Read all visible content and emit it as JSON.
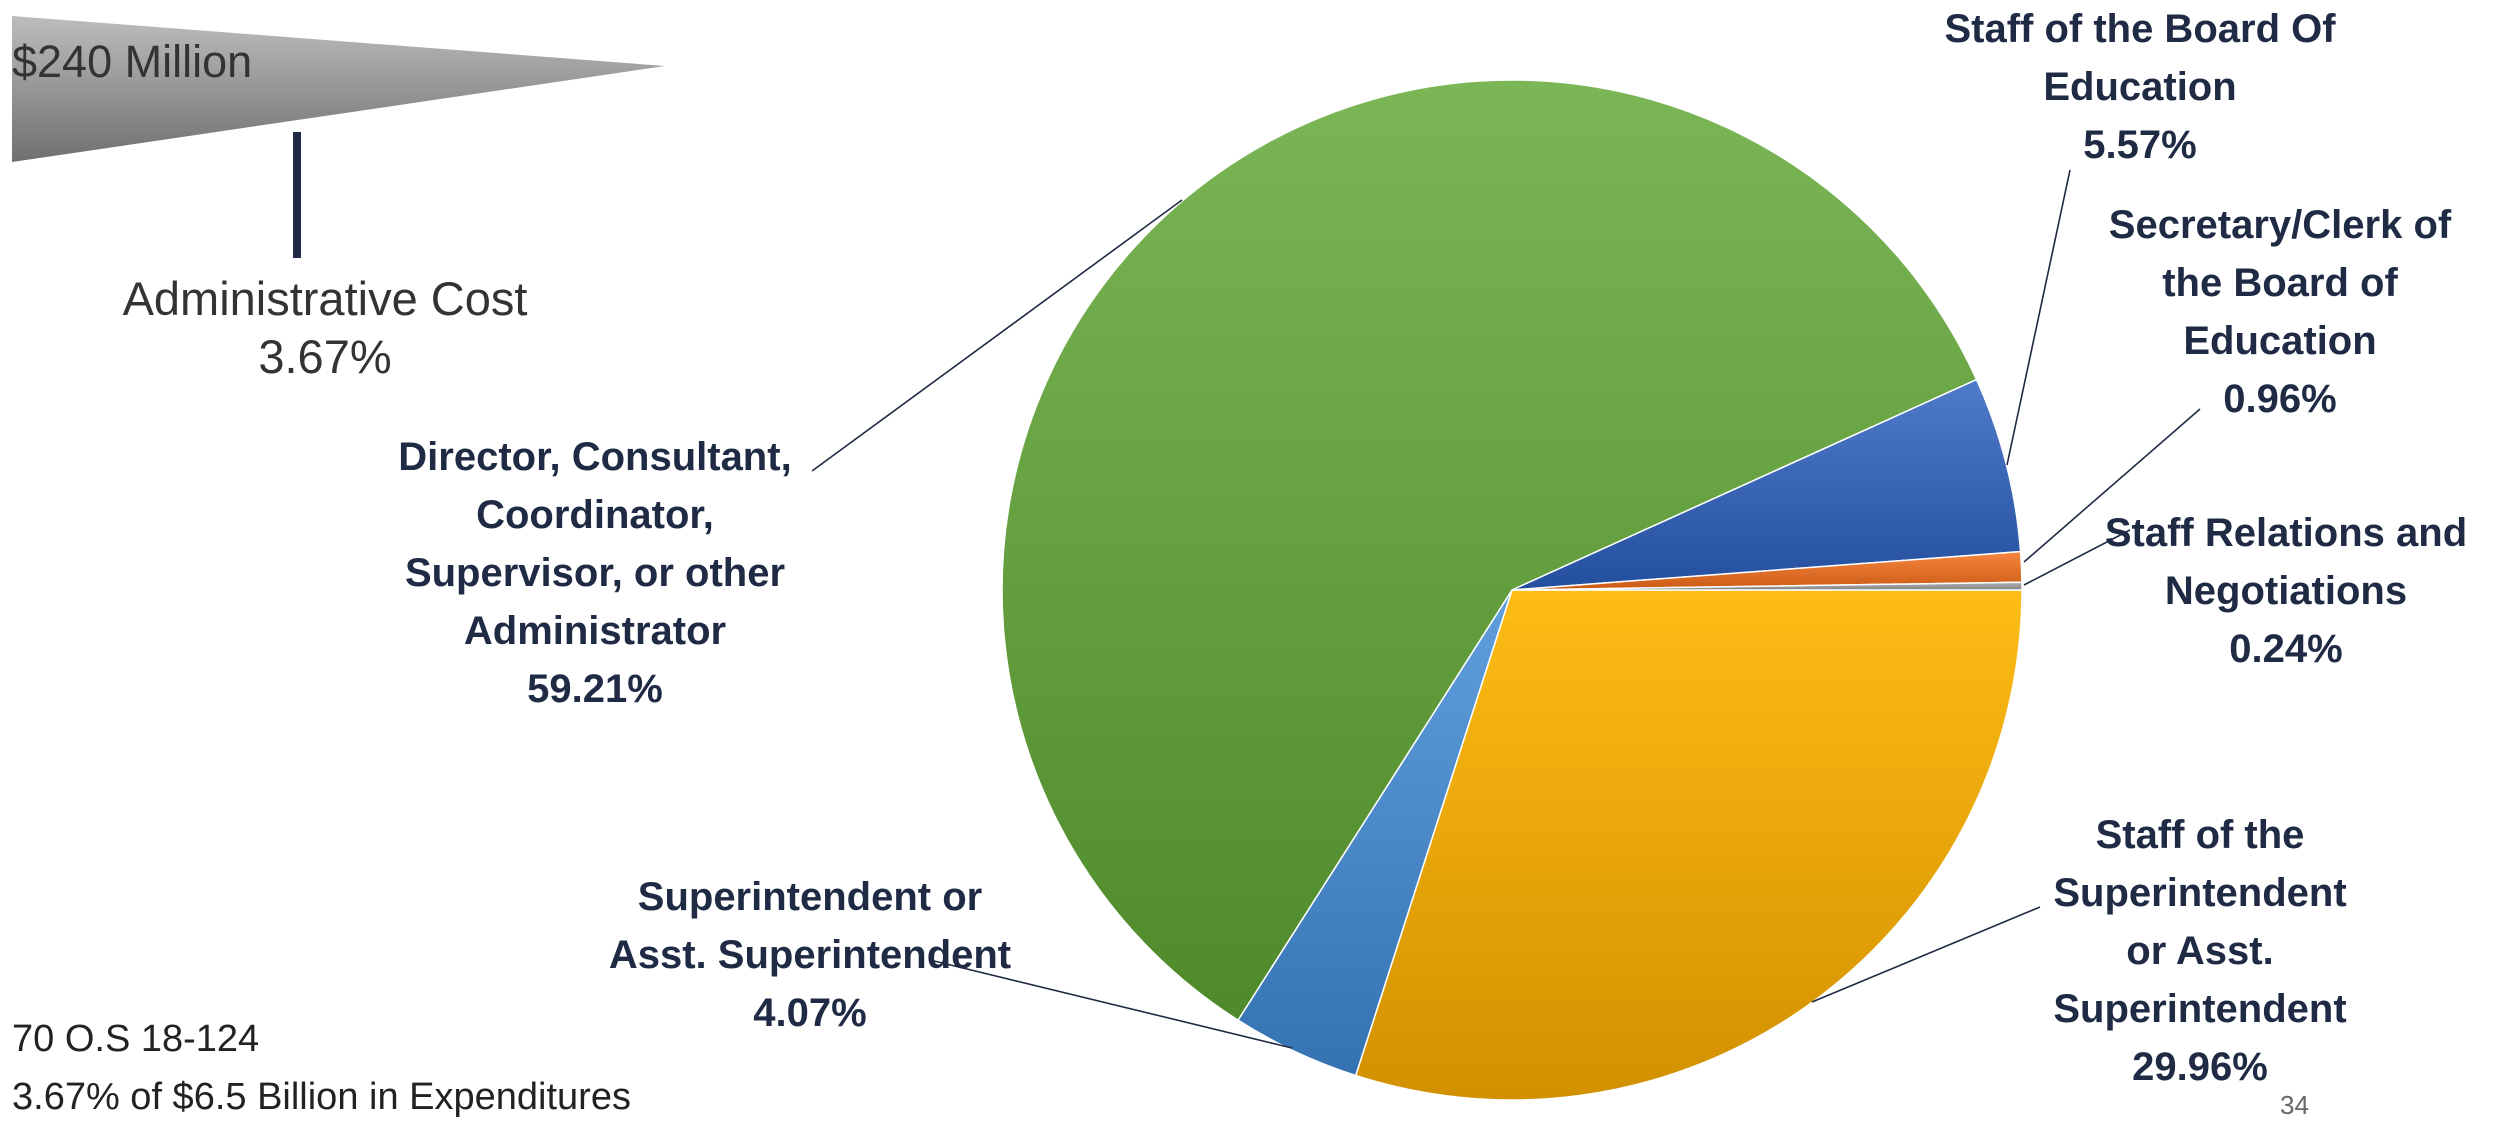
{
  "callout": {
    "amount": "$240 Million",
    "label": "Administrative Cost",
    "percent": "3.67%"
  },
  "footnote": {
    "line1": "70 O.S 18-124",
    "line2": "3.67% of $6.5 Billion in Expenditures"
  },
  "slide_number": "34",
  "colors": {
    "callout_gray": "#8c8c8c",
    "text_dark": "#1f2a44"
  },
  "chart_data": {
    "type": "pie",
    "categories": [
      "Staff of the Superintendent or Asst. Superintendent",
      "Superintendent or Asst. Superintendent",
      "Director, Consultant, Coordinator, Supervisor, or other Administrator",
      "Staff of the Board Of Education",
      "Secretary/Clerk of the Board of Education",
      "Staff Relations and Negotiations"
    ],
    "values": [
      29.96,
      4.07,
      59.21,
      5.57,
      0.96,
      0.24
    ],
    "labels": [
      {
        "lines": [
          "Staff of the",
          "Superintendent",
          "or Asst.",
          "Superintendent"
        ],
        "value": "29.96%",
        "color": "#e8a600"
      },
      {
        "lines": [
          "Superintendent or",
          "Asst. Superintendent"
        ],
        "value": "4.07%",
        "color": "#4a88c8"
      },
      {
        "lines": [
          "Director, Consultant,",
          "Coordinator,",
          "Supervisor, or other",
          "Administrator"
        ],
        "value": "59.21%",
        "color": "#65a040"
      },
      {
        "lines": [
          "Staff of the Board Of",
          "Education"
        ],
        "value": "5.57%",
        "color": "#3a64b4"
      },
      {
        "lines": [
          "Secretary/Clerk of",
          "the Board of",
          "Education"
        ],
        "value": "0.96%",
        "color": "#e0702a"
      },
      {
        "lines": [
          "Staff Relations and",
          "Negotiations"
        ],
        "value": "0.24%",
        "color": "#9a9a9a"
      }
    ],
    "start_direction": "3 o'clock, clockwise",
    "legend": "none"
  }
}
